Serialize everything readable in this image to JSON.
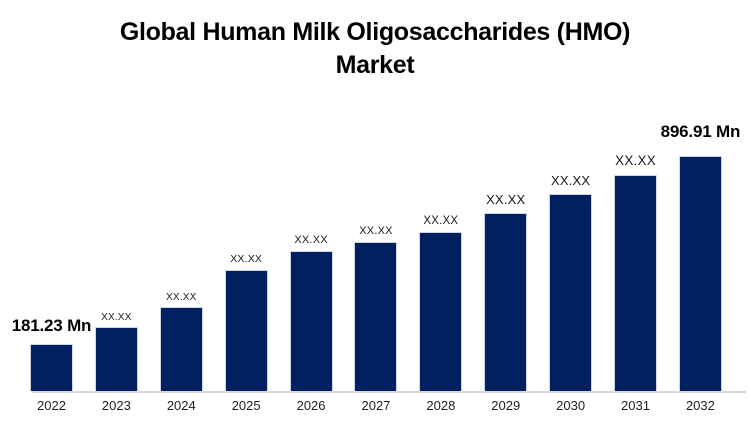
{
  "title": {
    "line1": "Global Human Milk Oligosaccharides (HMO)",
    "line2": "Market"
  },
  "chart_data": {
    "type": "bar",
    "title": "Global Human Milk Oligosaccharides (HMO) Market",
    "unit": "Mn",
    "categories": [
      "2022",
      "2023",
      "2024",
      "2025",
      "2026",
      "2027",
      "2028",
      "2029",
      "2030",
      "2031",
      "2032"
    ],
    "bar_labels": [
      "181.23 Mn",
      "XX.XX",
      "XX.XX",
      "XX.XX",
      "XX.XX",
      "XX.XX",
      "XX.XX",
      "XX.XX",
      "XX.XX",
      "XX.XX",
      "896.91 Mn"
    ],
    "known_values": {
      "2022": 181.23,
      "2032": 896.91
    },
    "values_estimated": [
      181.23,
      246,
      319,
      461,
      534,
      568,
      607,
      680,
      753,
      826,
      896.91
    ],
    "ylim": [
      0,
      900
    ],
    "grid": false,
    "legend": false,
    "y_axis_visible": false,
    "bar_color": "#002060",
    "bar_border_color": "#ccd6e4",
    "axis_line_color": "#d9d9d9",
    "label_color": "#1a1a1a"
  }
}
